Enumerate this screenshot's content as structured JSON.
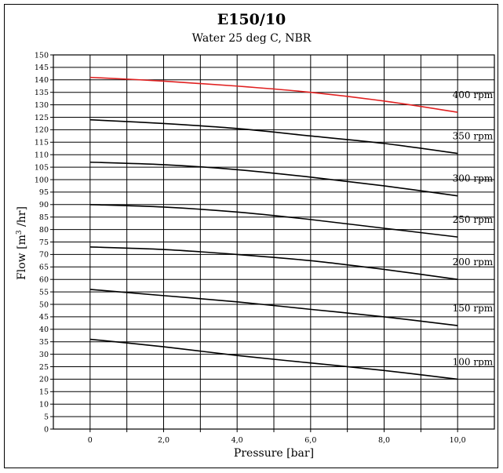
{
  "chart_data": {
    "type": "line",
    "title": "E150/10",
    "subtitle": "Water 25 deg C, NBR",
    "xlabel": "Pressure [bar]",
    "ylabel_main": "Flow [m",
    "ylabel_sup": "3",
    "ylabel_tail": " /hr]",
    "xlim": [
      -1,
      11
    ],
    "ylim": [
      0,
      150
    ],
    "x_ticks": [
      0,
      2,
      4,
      6,
      8,
      10
    ],
    "x_tick_labels": [
      "0",
      "2,0",
      "4,0",
      "6,0",
      "8,0",
      "10,0"
    ],
    "x_minor_step": 1,
    "y_ticks": [
      0,
      5,
      10,
      15,
      20,
      25,
      30,
      35,
      40,
      45,
      50,
      55,
      60,
      65,
      70,
      75,
      80,
      85,
      90,
      95,
      100,
      105,
      110,
      115,
      120,
      125,
      130,
      135,
      140,
      145,
      150
    ],
    "grid": true,
    "series": [
      {
        "name": "400 rpm",
        "color": "#e02020",
        "x": [
          0,
          2,
          4,
          6,
          8,
          10
        ],
        "y": [
          141,
          139.5,
          137.5,
          135,
          131.5,
          127
        ]
      },
      {
        "name": "350 rpm",
        "color": "#000000",
        "x": [
          0,
          2,
          4,
          6,
          8,
          10
        ],
        "y": [
          124,
          122.5,
          120.5,
          117.5,
          114.5,
          110.5
        ]
      },
      {
        "name": "300 rpm",
        "color": "#000000",
        "x": [
          0,
          2,
          4,
          6,
          8,
          10
        ],
        "y": [
          107,
          106,
          104,
          101,
          97.5,
          93.5
        ]
      },
      {
        "name": "250 rpm",
        "color": "#000000",
        "x": [
          0,
          2,
          4,
          6,
          8,
          10
        ],
        "y": [
          90,
          89,
          87,
          84,
          80.5,
          77
        ]
      },
      {
        "name": "200 rpm",
        "color": "#000000",
        "x": [
          0,
          2,
          4,
          6,
          8,
          10
        ],
        "y": [
          73,
          72,
          70,
          67.5,
          64,
          60
        ]
      },
      {
        "name": "150 rpm",
        "color": "#000000",
        "x": [
          0,
          2,
          4,
          6,
          8,
          10
        ],
        "y": [
          56,
          53.5,
          51,
          48,
          45,
          41.5
        ]
      },
      {
        "name": "100 rpm",
        "color": "#000000",
        "x": [
          0,
          2,
          4,
          6,
          8,
          10
        ],
        "y": [
          36,
          33,
          29.5,
          26.5,
          23.5,
          20
        ]
      }
    ]
  }
}
